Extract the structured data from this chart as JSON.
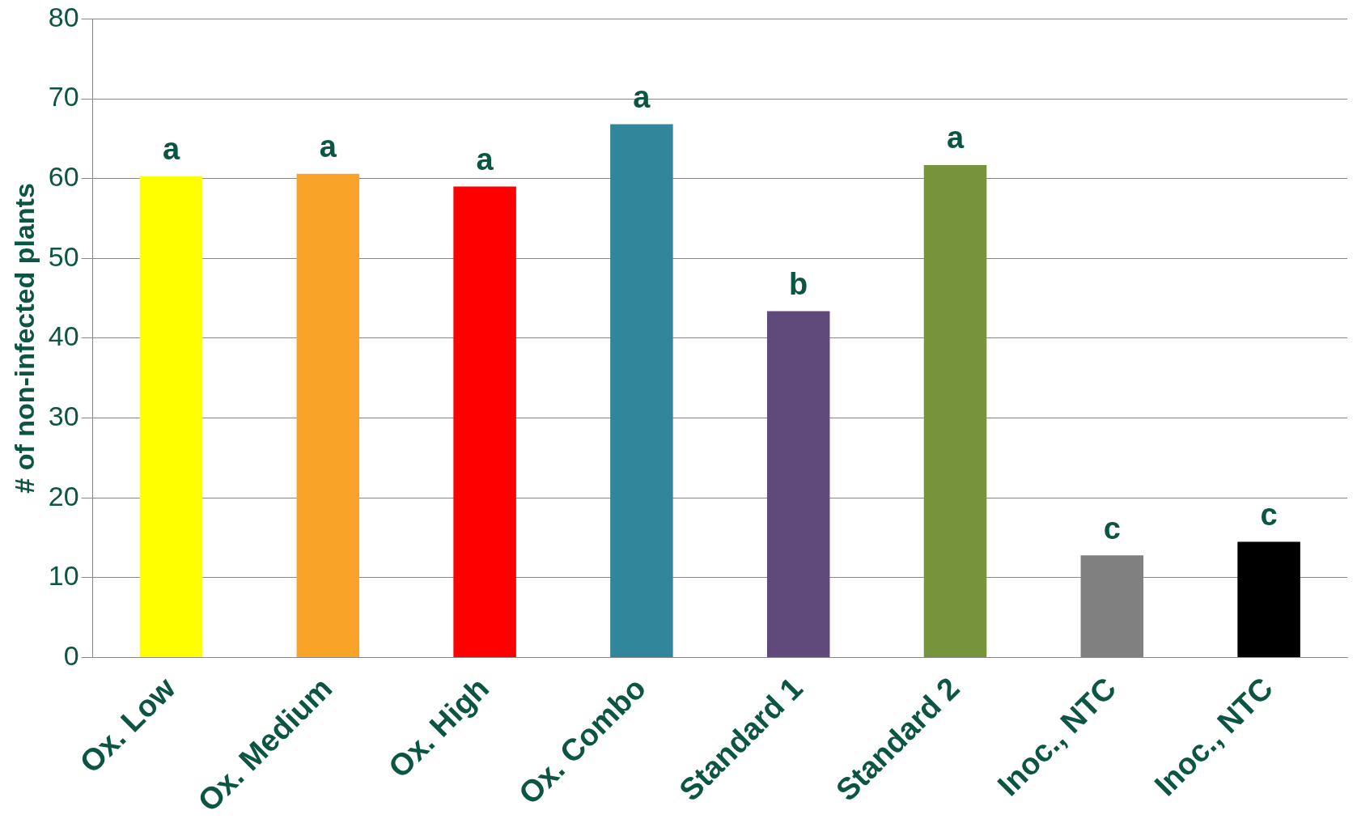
{
  "chart_data": {
    "type": "bar",
    "ylabel": "# of non-infected plants",
    "categories": [
      "Ox. Low",
      "Ox. Medium",
      "Ox. High",
      "Ox. Combo",
      "Standard 1",
      "Standard 2",
      "Inoc., NTC",
      "Inoc., NTC"
    ],
    "values": [
      60.3,
      60.6,
      59.0,
      66.8,
      43.4,
      61.7,
      12.8,
      14.5
    ],
    "colors": [
      "#ffff00",
      "#f9a428",
      "#ff0000",
      "#31869b",
      "#604a7b",
      "#77933c",
      "#808080",
      "#000000"
    ],
    "value_labels": [
      "a",
      "a",
      "a",
      "a",
      "b",
      "a",
      "c",
      "c"
    ],
    "ylim": [
      0,
      80
    ],
    "yticks": [
      0,
      10,
      20,
      30,
      40,
      50,
      60,
      70,
      80
    ],
    "grid": "y",
    "legend": false
  }
}
